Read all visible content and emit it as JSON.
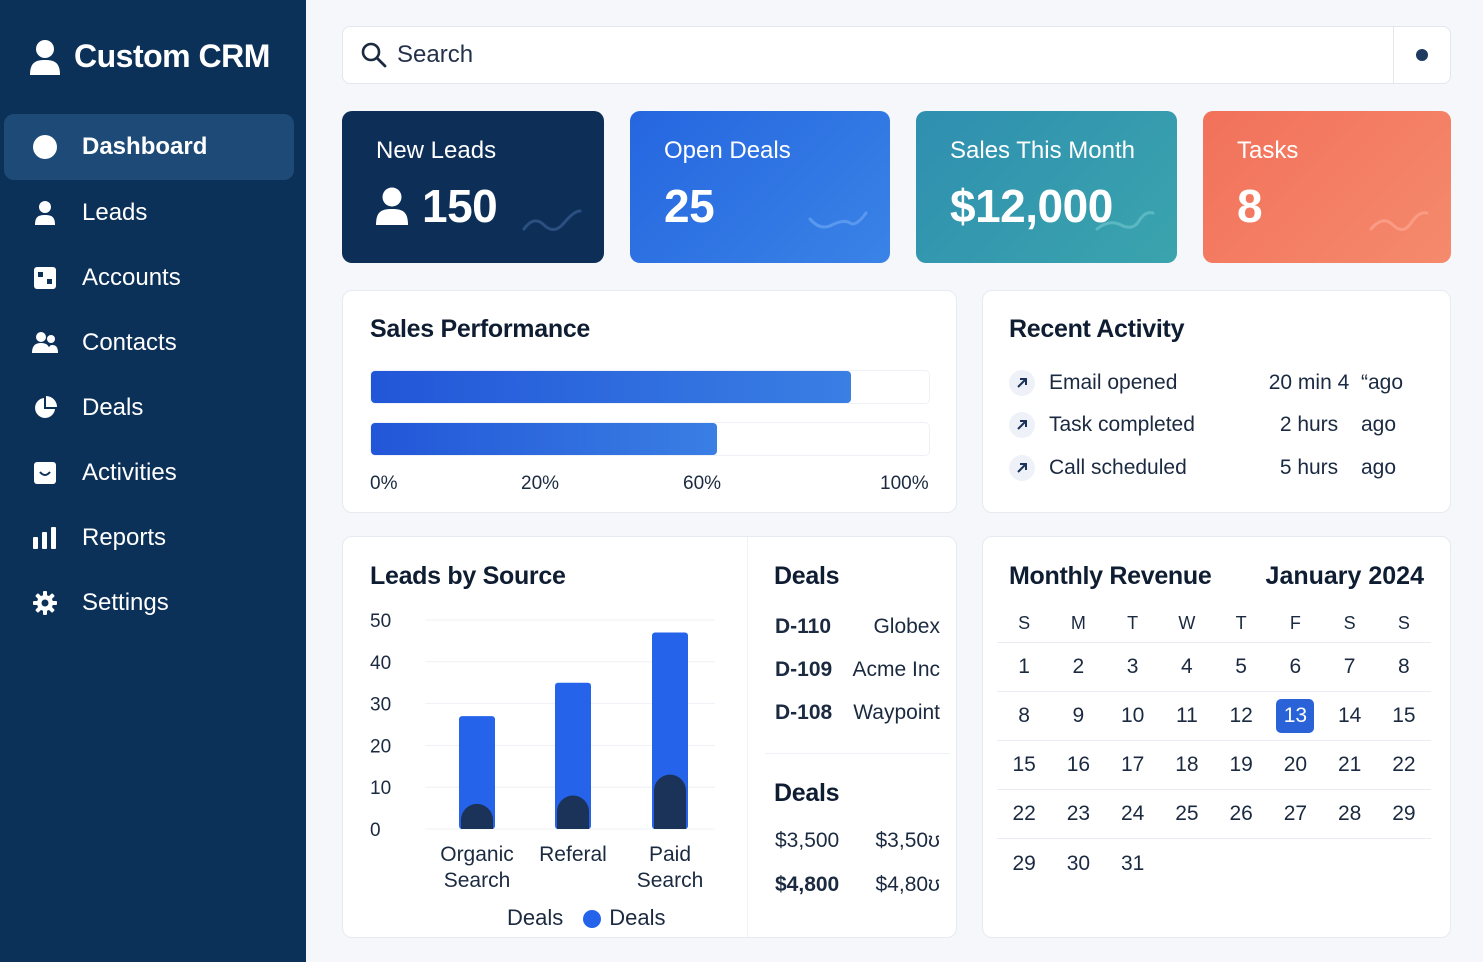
{
  "sidebar": {
    "brand": "Custom CRM",
    "items": [
      {
        "label": "Dashboard",
        "icon": "circle-icon",
        "active": true
      },
      {
        "label": "Leads",
        "icon": "user-icon"
      },
      {
        "label": "Accounts",
        "icon": "building-icon"
      },
      {
        "label": "Contacts",
        "icon": "contacts-icon"
      },
      {
        "label": "Deals",
        "icon": "pie-chart-icon"
      },
      {
        "label": "Activities",
        "icon": "inbox-icon"
      },
      {
        "label": "Reports",
        "icon": "bar-chart-icon"
      },
      {
        "label": "Settings",
        "icon": "gear-icon"
      }
    ]
  },
  "search": {
    "placeholder": "Search"
  },
  "kpis": [
    {
      "label": "New Leads",
      "value": "150",
      "color": "#0d2f57"
    },
    {
      "label": "Open Deals",
      "value": "25",
      "color": "#2566e0"
    },
    {
      "label": "Sales This Month",
      "value": "$12,000",
      "color": "#3098ae"
    },
    {
      "label": "Tasks",
      "value": "8",
      "color": "#f2715a"
    }
  ],
  "sales_performance": {
    "title": "Sales Performance",
    "bars": [
      0.86,
      0.62
    ],
    "axis": [
      "0%",
      "20%",
      "60%",
      "100%"
    ]
  },
  "recent_activity": {
    "title": "Recent Activity",
    "items": [
      {
        "label": "Email opened",
        "time": "20 min 4",
        "ago": "“ago"
      },
      {
        "label": "Task completed",
        "time": "2 hurs",
        "ago": "ago"
      },
      {
        "label": "Call scheduled",
        "time": "5 hurs",
        "ago": "ago"
      }
    ]
  },
  "chart_data": {
    "type": "bar",
    "title": "Leads by Source",
    "categories": [
      "Organic Search",
      "Referal",
      "Paid Search"
    ],
    "category_lines": [
      [
        "Organic",
        "Search"
      ],
      [
        "Referal"
      ],
      [
        "Paid",
        "Search"
      ]
    ],
    "series": [
      {
        "name": "Deals",
        "values": [
          27,
          35,
          47
        ]
      }
    ],
    "overlay_values": [
      6,
      8,
      13
    ],
    "yticks": [
      0,
      10,
      20,
      30,
      40,
      50
    ],
    "ylim": [
      0,
      50
    ],
    "legend": [
      "Deals",
      "Deals"
    ],
    "legend_placement": "bottom",
    "colors": {
      "bar": "#2563eb",
      "overlay": "#1b3358"
    }
  },
  "deals": {
    "title": "Deals",
    "rows": [
      {
        "id": "D-110",
        "company": "Globex"
      },
      {
        "id": "D-109",
        "company": "Acme Inc"
      },
      {
        "id": "D-108",
        "company": "Waypoint"
      }
    ],
    "title2": "Deals",
    "amounts": [
      {
        "a": "$3,500",
        "b": "$3,50ʊ"
      },
      {
        "a": "$4,800",
        "b": "$4,80ʊ"
      }
    ]
  },
  "revenue": {
    "title": "Monthly Revenue",
    "month": "January 2024",
    "weekdays": [
      "S",
      "M",
      "T",
      "W",
      "T",
      "F",
      "S",
      "S"
    ],
    "weeks": [
      [
        "1",
        "2",
        "3",
        "4",
        "5",
        "6",
        "7",
        "8"
      ],
      [
        "8",
        "9",
        "10",
        "11",
        "12",
        "13",
        "14",
        "15"
      ],
      [
        "15",
        "16",
        "17",
        "18",
        "19",
        "20",
        "21",
        "22"
      ],
      [
        "22",
        "23",
        "24",
        "25",
        "26",
        "27",
        "28",
        "29"
      ],
      [
        "29",
        "30",
        "31",
        "",
        "",
        "",
        "",
        ""
      ]
    ],
    "today": "13"
  }
}
